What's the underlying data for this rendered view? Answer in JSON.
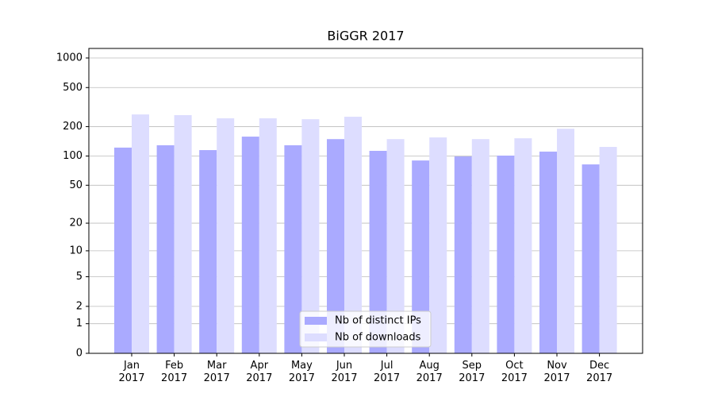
{
  "chart_data": {
    "type": "bar",
    "title": "BiGGR 2017",
    "categories": [
      "Jan\n2017",
      "Feb\n2017",
      "Mar\n2017",
      "Apr\n2017",
      "May\n2017",
      "Jun\n2017",
      "Jul\n2017",
      "Aug\n2017",
      "Sep\n2017",
      "Oct\n2017",
      "Nov\n2017",
      "Dec\n2017"
    ],
    "series": [
      {
        "name": "Nb of distinct IPs",
        "color": "#aaaaff",
        "values": [
          122,
          129,
          115,
          158,
          129,
          149,
          113,
          90,
          99,
          101,
          111,
          82
        ]
      },
      {
        "name": "Nb of downloads",
        "color": "#ddddff",
        "values": [
          266,
          262,
          243,
          243,
          238,
          252,
          149,
          155,
          149,
          152,
          190,
          124
        ]
      }
    ],
    "yscale": "log1p",
    "ylim": [
      0,
      1250
    ],
    "yticks": [
      0,
      1,
      2,
      5,
      10,
      20,
      50,
      100,
      200,
      500,
      1000
    ],
    "grid": true,
    "legend": "lower center"
  }
}
